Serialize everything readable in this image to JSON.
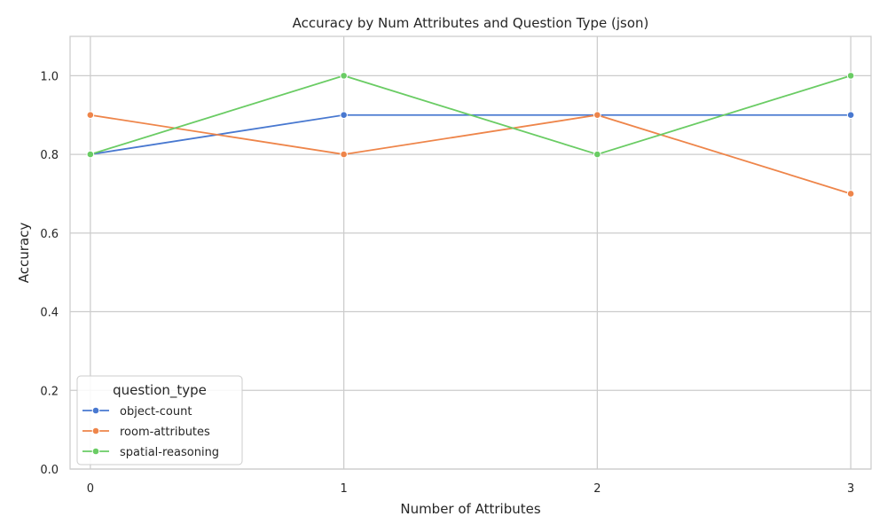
{
  "chart_data": {
    "type": "line",
    "title": "Accuracy by Num Attributes and Question Type (json)",
    "xlabel": "Number of Attributes",
    "ylabel": "Accuracy",
    "x": [
      0,
      1,
      2,
      3
    ],
    "xticks": [
      "0",
      "1",
      "2",
      "3"
    ],
    "yticks": [
      "0.0",
      "0.2",
      "0.4",
      "0.6",
      "0.8",
      "1.0"
    ],
    "xlim": [
      -0.08,
      3.08
    ],
    "ylim": [
      0,
      1.1
    ],
    "grid": true,
    "legend": {
      "title": "question_type",
      "placement": "lower-left"
    },
    "series": [
      {
        "name": "object-count",
        "color": "#4878d0",
        "values": [
          0.8,
          0.9,
          0.9,
          0.9
        ]
      },
      {
        "name": "room-attributes",
        "color": "#ee854a",
        "values": [
          0.9,
          0.8,
          0.9,
          0.7
        ]
      },
      {
        "name": "spatial-reasoning",
        "color": "#6acc64",
        "values": [
          0.8,
          1.0,
          0.8,
          1.0
        ]
      }
    ]
  }
}
